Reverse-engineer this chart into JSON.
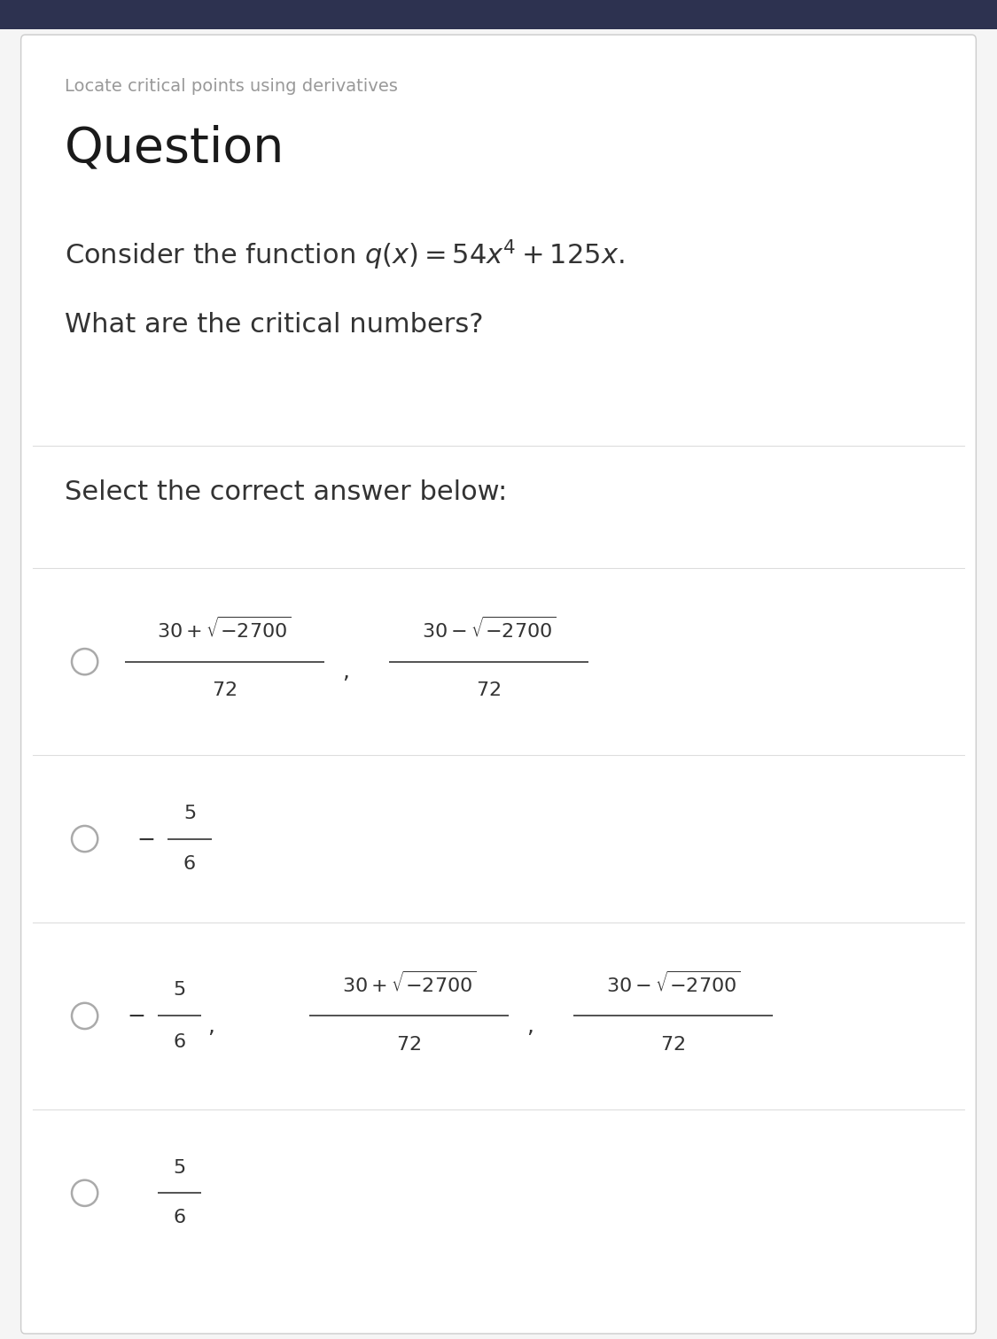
{
  "top_bar_color": "#2d3250",
  "bg_color": "#f5f5f5",
  "card_color": "#ffffff",
  "card_border_color": "#cccccc",
  "subtitle_text": "Locate critical points using derivatives",
  "subtitle_color": "#999999",
  "subtitle_fontsize": 14,
  "title_text": "Question",
  "title_color": "#1a1a1a",
  "title_fontsize": 40,
  "question_fontsize": 22,
  "question_color": "#333333",
  "select_text": "Select the correct answer below:",
  "select_fontsize": 22,
  "select_color": "#333333",
  "divider_color": "#dddddd",
  "option_circle_color": "#aaaaaa",
  "option_text_color": "#333333",
  "option_fontsize": 16,
  "fig_width": 11.25,
  "fig_height": 15.11
}
